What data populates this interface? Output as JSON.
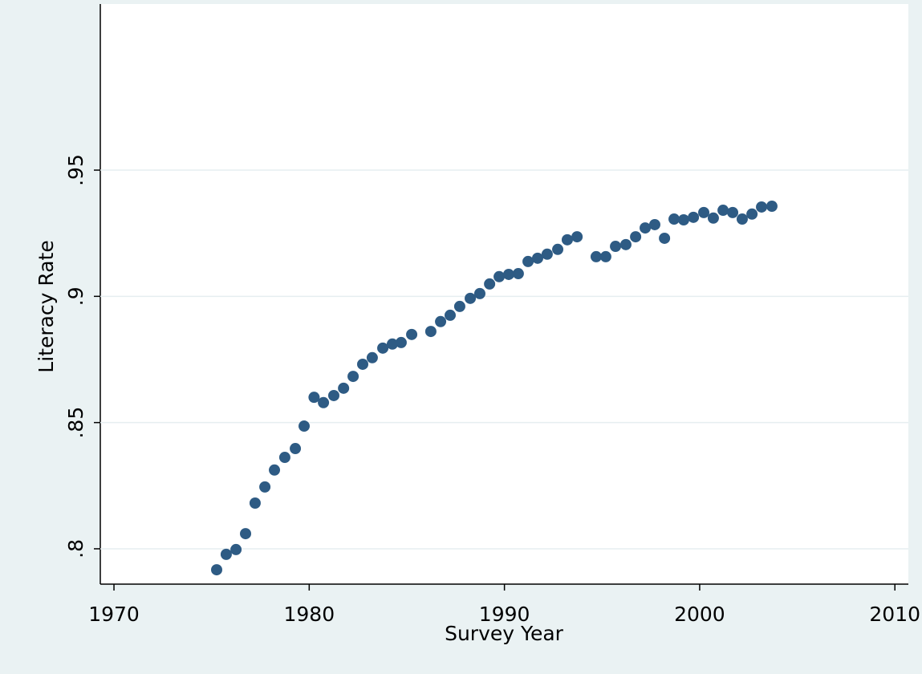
{
  "chart_data": {
    "type": "scatter",
    "x_label": "Survey Year",
    "y_label": "Literacy Rate",
    "color": "#2e5b84",
    "grid": true,
    "xlim": [
      1969.3,
      2010.69
    ],
    "ylim": [
      0.786,
      1.0158
    ],
    "xticks": [
      1970,
      1980,
      1990,
      2000,
      2010
    ],
    "yticks": [
      {
        "value": 0.8,
        "label": ".8"
      },
      {
        "value": 0.85,
        "label": ".85"
      },
      {
        "value": 0.9,
        "label": ".9"
      },
      {
        "value": 0.95,
        "label": ".95"
      }
    ],
    "x": [
      1975.26,
      1975.75,
      1976.25,
      1976.74,
      1977.23,
      1977.73,
      1978.22,
      1978.75,
      1979.29,
      1979.74,
      1980.25,
      1980.73,
      1981.26,
      1981.76,
      1982.25,
      1982.74,
      1983.23,
      1983.77,
      1984.26,
      1984.71,
      1985.25,
      1986.23,
      1986.73,
      1987.22,
      1987.71,
      1988.25,
      1988.74,
      1989.24,
      1989.73,
      1990.22,
      1990.71,
      1991.21,
      1991.7,
      1992.19,
      1992.73,
      1993.22,
      1993.72,
      1994.7,
      1995.19,
      1995.69,
      1996.22,
      1996.72,
      1997.21,
      1997.7,
      1998.2,
      1998.69,
      1999.18,
      1999.68,
      2000.21,
      2000.7,
      2001.2,
      2001.69,
      2002.18,
      2002.68,
      2003.17,
      2003.7
    ],
    "values": [
      0.7917,
      0.7978,
      0.7997,
      0.806,
      0.8181,
      0.8245,
      0.8312,
      0.8362,
      0.8397,
      0.8486,
      0.86,
      0.8579,
      0.8607,
      0.8636,
      0.8683,
      0.8731,
      0.8757,
      0.8795,
      0.8811,
      0.8817,
      0.8849,
      0.8861,
      0.89,
      0.8925,
      0.896,
      0.8992,
      0.9011,
      0.9049,
      0.9078,
      0.9087,
      0.909,
      0.9138,
      0.9151,
      0.9167,
      0.9186,
      0.9224,
      0.9236,
      0.9157,
      0.9157,
      0.9198,
      0.9205,
      0.9236,
      0.9271,
      0.9284,
      0.923,
      0.9306,
      0.9303,
      0.9313,
      0.9332,
      0.931,
      0.9341,
      0.9332,
      0.9306,
      0.9326,
      0.9354,
      0.9357
    ]
  }
}
